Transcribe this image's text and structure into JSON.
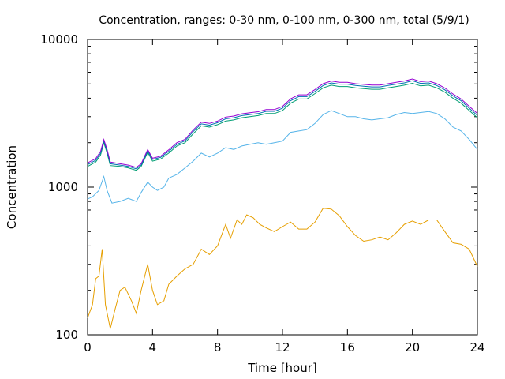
{
  "chart_data": {
    "type": "line",
    "title": "Concentration, ranges: 0-30 nm, 0-100 nm, 0-300 nm, total (5/9/1)",
    "xlabel": "Time [hour]",
    "ylabel": "Concentration",
    "xlim": [
      0,
      24
    ],
    "ylim": [
      100,
      10000
    ],
    "y_scale": "log",
    "grid": false,
    "legend": "none",
    "x_ticks": [
      0,
      4,
      8,
      12,
      16,
      20,
      24
    ],
    "x_tick_labels": [
      "0",
      "4",
      "8",
      "12",
      "16",
      "20",
      "24"
    ],
    "y_ticks": [
      100,
      1000,
      10000
    ],
    "y_tick_labels": [
      "100",
      "1000",
      "10000"
    ],
    "series": [
      {
        "color": "#e69f00",
        "points": [
          [
            0,
            130
          ],
          [
            0.3,
            160
          ],
          [
            0.5,
            240
          ],
          [
            0.7,
            250
          ],
          [
            0.9,
            380
          ],
          [
            1.1,
            160
          ],
          [
            1.4,
            110
          ],
          [
            1.7,
            150
          ],
          [
            2.0,
            200
          ],
          [
            2.3,
            210
          ],
          [
            2.7,
            170
          ],
          [
            3.0,
            140
          ],
          [
            3.3,
            200
          ],
          [
            3.7,
            300
          ],
          [
            4.0,
            200
          ],
          [
            4.3,
            160
          ],
          [
            4.7,
            170
          ],
          [
            5.0,
            220
          ],
          [
            5.5,
            250
          ],
          [
            6.0,
            280
          ],
          [
            6.5,
            300
          ],
          [
            7.0,
            380
          ],
          [
            7.5,
            350
          ],
          [
            8.0,
            400
          ],
          [
            8.5,
            560
          ],
          [
            8.8,
            450
          ],
          [
            9.2,
            600
          ],
          [
            9.5,
            560
          ],
          [
            9.8,
            650
          ],
          [
            10.2,
            620
          ],
          [
            10.6,
            560
          ],
          [
            11.0,
            530
          ],
          [
            11.5,
            500
          ],
          [
            12.0,
            540
          ],
          [
            12.5,
            580
          ],
          [
            13.0,
            520
          ],
          [
            13.5,
            520
          ],
          [
            14.0,
            580
          ],
          [
            14.5,
            720
          ],
          [
            15.0,
            710
          ],
          [
            15.5,
            640
          ],
          [
            16.0,
            540
          ],
          [
            16.5,
            470
          ],
          [
            17.0,
            430
          ],
          [
            17.5,
            440
          ],
          [
            18.0,
            460
          ],
          [
            18.5,
            440
          ],
          [
            19.0,
            490
          ],
          [
            19.5,
            560
          ],
          [
            20.0,
            590
          ],
          [
            20.5,
            560
          ],
          [
            21.0,
            600
          ],
          [
            21.5,
            600
          ],
          [
            22.0,
            500
          ],
          [
            22.5,
            420
          ],
          [
            23.0,
            410
          ],
          [
            23.5,
            380
          ],
          [
            24.0,
            290
          ]
        ]
      },
      {
        "color": "#56b4e9",
        "points": [
          [
            0,
            830
          ],
          [
            0.3,
            860
          ],
          [
            0.7,
            950
          ],
          [
            1.0,
            1180
          ],
          [
            1.2,
            950
          ],
          [
            1.5,
            780
          ],
          [
            2.0,
            800
          ],
          [
            2.5,
            840
          ],
          [
            3.0,
            800
          ],
          [
            3.3,
            920
          ],
          [
            3.7,
            1080
          ],
          [
            4.0,
            1000
          ],
          [
            4.3,
            950
          ],
          [
            4.7,
            1000
          ],
          [
            5.0,
            1150
          ],
          [
            5.5,
            1220
          ],
          [
            6.0,
            1350
          ],
          [
            6.5,
            1500
          ],
          [
            7.0,
            1700
          ],
          [
            7.5,
            1600
          ],
          [
            8.0,
            1700
          ],
          [
            8.5,
            1850
          ],
          [
            9.0,
            1800
          ],
          [
            9.5,
            1900
          ],
          [
            10.0,
            1950
          ],
          [
            10.5,
            2000
          ],
          [
            11.0,
            1950
          ],
          [
            11.5,
            2000
          ],
          [
            12.0,
            2050
          ],
          [
            12.5,
            2350
          ],
          [
            13.0,
            2400
          ],
          [
            13.5,
            2450
          ],
          [
            14.0,
            2700
          ],
          [
            14.5,
            3100
          ],
          [
            15.0,
            3300
          ],
          [
            15.5,
            3150
          ],
          [
            16.0,
            3000
          ],
          [
            16.5,
            3000
          ],
          [
            17.0,
            2900
          ],
          [
            17.5,
            2850
          ],
          [
            18.0,
            2900
          ],
          [
            18.5,
            2950
          ],
          [
            19.0,
            3100
          ],
          [
            19.5,
            3200
          ],
          [
            20.0,
            3150
          ],
          [
            20.5,
            3200
          ],
          [
            21.0,
            3250
          ],
          [
            21.5,
            3150
          ],
          [
            22.0,
            2900
          ],
          [
            22.5,
            2550
          ],
          [
            23.0,
            2400
          ],
          [
            23.5,
            2100
          ],
          [
            24.0,
            1800
          ]
        ]
      },
      {
        "color": "#009e73",
        "points": [
          [
            0,
            1380
          ],
          [
            0.5,
            1480
          ],
          [
            0.8,
            1650
          ],
          [
            1.0,
            2000
          ],
          [
            1.2,
            1700
          ],
          [
            1.4,
            1400
          ],
          [
            2.0,
            1380
          ],
          [
            2.5,
            1350
          ],
          [
            3.0,
            1300
          ],
          [
            3.3,
            1380
          ],
          [
            3.7,
            1720
          ],
          [
            4.0,
            1500
          ],
          [
            4.5,
            1550
          ],
          [
            5.0,
            1700
          ],
          [
            5.5,
            1900
          ],
          [
            6.0,
            2000
          ],
          [
            6.5,
            2300
          ],
          [
            7.0,
            2600
          ],
          [
            7.5,
            2550
          ],
          [
            8.0,
            2650
          ],
          [
            8.5,
            2800
          ],
          [
            9.0,
            2850
          ],
          [
            9.5,
            2950
          ],
          [
            10.0,
            3000
          ],
          [
            10.5,
            3050
          ],
          [
            11.0,
            3150
          ],
          [
            11.5,
            3150
          ],
          [
            12.0,
            3300
          ],
          [
            12.5,
            3700
          ],
          [
            13.0,
            3950
          ],
          [
            13.5,
            3950
          ],
          [
            14.0,
            4300
          ],
          [
            14.5,
            4700
          ],
          [
            15.0,
            4900
          ],
          [
            15.5,
            4800
          ],
          [
            16.0,
            4800
          ],
          [
            16.5,
            4700
          ],
          [
            17.0,
            4650
          ],
          [
            17.5,
            4600
          ],
          [
            18.0,
            4600
          ],
          [
            18.5,
            4700
          ],
          [
            19.0,
            4800
          ],
          [
            19.5,
            4900
          ],
          [
            20.0,
            5050
          ],
          [
            20.5,
            4850
          ],
          [
            21.0,
            4900
          ],
          [
            21.5,
            4700
          ],
          [
            22.0,
            4400
          ],
          [
            22.5,
            4000
          ],
          [
            23.0,
            3700
          ],
          [
            23.5,
            3300
          ],
          [
            24.0,
            2950
          ]
        ]
      },
      {
        "color": "#0072b2",
        "points": [
          [
            0,
            1420
          ],
          [
            0.5,
            1520
          ],
          [
            0.8,
            1700
          ],
          [
            1.0,
            2050
          ],
          [
            1.2,
            1750
          ],
          [
            1.4,
            1440
          ],
          [
            2.0,
            1410
          ],
          [
            2.5,
            1380
          ],
          [
            3.0,
            1330
          ],
          [
            3.3,
            1410
          ],
          [
            3.7,
            1760
          ],
          [
            4.0,
            1540
          ],
          [
            4.5,
            1590
          ],
          [
            5.0,
            1750
          ],
          [
            5.5,
            1950
          ],
          [
            6.0,
            2060
          ],
          [
            6.5,
            2380
          ],
          [
            7.0,
            2680
          ],
          [
            7.5,
            2630
          ],
          [
            8.0,
            2730
          ],
          [
            8.5,
            2900
          ],
          [
            9.0,
            2950
          ],
          [
            9.5,
            3050
          ],
          [
            10.0,
            3100
          ],
          [
            10.5,
            3150
          ],
          [
            11.0,
            3260
          ],
          [
            11.5,
            3260
          ],
          [
            12.0,
            3420
          ],
          [
            12.5,
            3850
          ],
          [
            13.0,
            4100
          ],
          [
            13.5,
            4100
          ],
          [
            14.0,
            4450
          ],
          [
            14.5,
            4880
          ],
          [
            15.0,
            5080
          ],
          [
            15.5,
            4980
          ],
          [
            16.0,
            4980
          ],
          [
            16.5,
            4880
          ],
          [
            17.0,
            4820
          ],
          [
            17.5,
            4770
          ],
          [
            18.0,
            4770
          ],
          [
            18.5,
            4880
          ],
          [
            19.0,
            4980
          ],
          [
            19.5,
            5080
          ],
          [
            20.0,
            5250
          ],
          [
            20.5,
            5040
          ],
          [
            21.0,
            5080
          ],
          [
            21.5,
            4880
          ],
          [
            22.0,
            4560
          ],
          [
            22.5,
            4150
          ],
          [
            23.0,
            3840
          ],
          [
            23.5,
            3420
          ],
          [
            24.0,
            3060
          ]
        ]
      },
      {
        "color": "#9400d3",
        "points": [
          [
            0,
            1460
          ],
          [
            0.5,
            1560
          ],
          [
            0.8,
            1750
          ],
          [
            1.0,
            2100
          ],
          [
            1.2,
            1800
          ],
          [
            1.4,
            1480
          ],
          [
            2.0,
            1440
          ],
          [
            2.5,
            1410
          ],
          [
            3.0,
            1360
          ],
          [
            3.3,
            1440
          ],
          [
            3.7,
            1800
          ],
          [
            4.0,
            1570
          ],
          [
            4.5,
            1620
          ],
          [
            5.0,
            1790
          ],
          [
            5.5,
            2000
          ],
          [
            6.0,
            2110
          ],
          [
            6.5,
            2440
          ],
          [
            7.0,
            2750
          ],
          [
            7.5,
            2700
          ],
          [
            8.0,
            2800
          ],
          [
            8.5,
            2980
          ],
          [
            9.0,
            3030
          ],
          [
            9.5,
            3140
          ],
          [
            10.0,
            3190
          ],
          [
            10.5,
            3240
          ],
          [
            11.0,
            3350
          ],
          [
            11.5,
            3350
          ],
          [
            12.0,
            3520
          ],
          [
            12.5,
            3960
          ],
          [
            13.0,
            4220
          ],
          [
            13.5,
            4220
          ],
          [
            14.0,
            4580
          ],
          [
            14.5,
            5020
          ],
          [
            15.0,
            5230
          ],
          [
            15.5,
            5130
          ],
          [
            16.0,
            5130
          ],
          [
            16.5,
            5020
          ],
          [
            17.0,
            4960
          ],
          [
            17.5,
            4910
          ],
          [
            18.0,
            4910
          ],
          [
            18.5,
            5020
          ],
          [
            19.0,
            5130
          ],
          [
            19.5,
            5230
          ],
          [
            20.0,
            5400
          ],
          [
            20.5,
            5180
          ],
          [
            21.0,
            5230
          ],
          [
            21.5,
            5020
          ],
          [
            22.0,
            4690
          ],
          [
            22.5,
            4270
          ],
          [
            23.0,
            3950
          ],
          [
            23.5,
            3520
          ],
          [
            24.0,
            3150
          ]
        ]
      }
    ]
  }
}
